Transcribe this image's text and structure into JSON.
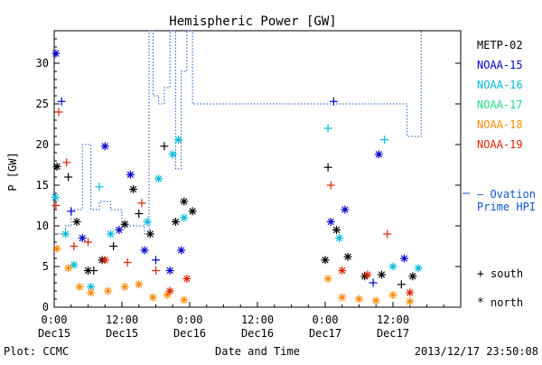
{
  "chart_data": {
    "type": "scatter",
    "title": "Hemispheric Power [GW]",
    "xlabel": "Date and Time",
    "ylabel": "P [GW]",
    "ylim": [
      0,
      34
    ],
    "xlim_hours": [
      0,
      72
    ],
    "x_ticks": [
      {
        "t": 0,
        "top": "0:00",
        "bottom": "Dec15"
      },
      {
        "t": 12,
        "top": "12:00",
        "bottom": "Dec15"
      },
      {
        "t": 24,
        "top": "0:00",
        "bottom": "Dec16"
      },
      {
        "t": 36,
        "top": "12:00",
        "bottom": "Dec16"
      },
      {
        "t": 48,
        "top": "0:00",
        "bottom": "Dec17"
      },
      {
        "t": 60,
        "top": "12:00",
        "bottom": "Dec17"
      }
    ],
    "y_ticks": [
      0,
      5,
      10,
      15,
      20,
      25,
      30
    ],
    "footer_left": "Plot: CCMC",
    "footer_right": "2013/12/17 23:50:08",
    "ovation_label_line1": "— Ovation",
    "ovation_label_line2": "Prime HPI",
    "symbol_legend": [
      {
        "symbol": "+",
        "label": "south"
      },
      {
        "symbol": "*",
        "label": "north"
      }
    ],
    "series": [
      {
        "name": "METP-02",
        "color": "#000000",
        "points": [
          {
            "x": 0.5,
            "y": 17.3,
            "m": "*"
          },
          {
            "x": 2.5,
            "y": 16.0,
            "m": "+"
          },
          {
            "x": 4.0,
            "y": 10.5,
            "m": "*"
          },
          {
            "x": 6.0,
            "y": 4.5,
            "m": "*"
          },
          {
            "x": 7.0,
            "y": 4.5,
            "m": "+"
          },
          {
            "x": 8.5,
            "y": 5.8,
            "m": "*"
          },
          {
            "x": 10.5,
            "y": 7.5,
            "m": "+"
          },
          {
            "x": 12.5,
            "y": 10.2,
            "m": "*"
          },
          {
            "x": 14.0,
            "y": 14.5,
            "m": "*"
          },
          {
            "x": 15.0,
            "y": 11.5,
            "m": "+"
          },
          {
            "x": 17.0,
            "y": 9.0,
            "m": "*"
          },
          {
            "x": 19.5,
            "y": 19.8,
            "m": "+"
          },
          {
            "x": 21.5,
            "y": 10.5,
            "m": "*"
          },
          {
            "x": 23.0,
            "y": 13.0,
            "m": "*"
          },
          {
            "x": 24.5,
            "y": 11.8,
            "m": "*"
          },
          {
            "x": 48.5,
            "y": 17.2,
            "m": "+"
          },
          {
            "x": 48.0,
            "y": 5.8,
            "m": "*"
          },
          {
            "x": 50.0,
            "y": 9.5,
            "m": "*"
          },
          {
            "x": 52.0,
            "y": 6.2,
            "m": "*"
          },
          {
            "x": 55.0,
            "y": 3.8,
            "m": "*"
          },
          {
            "x": 58.0,
            "y": 4.0,
            "m": "*"
          },
          {
            "x": 61.5,
            "y": 2.8,
            "m": "+"
          },
          {
            "x": 63.5,
            "y": 3.8,
            "m": "*"
          }
        ]
      },
      {
        "name": "NOAA-15",
        "color": "#0000cc",
        "points": [
          {
            "x": 0.3,
            "y": 31.2,
            "m": "*"
          },
          {
            "x": 1.3,
            "y": 25.3,
            "m": "+"
          },
          {
            "x": 3.0,
            "y": 11.8,
            "m": "+"
          },
          {
            "x": 5.0,
            "y": 8.5,
            "m": "*"
          },
          {
            "x": 9.0,
            "y": 19.8,
            "m": "*"
          },
          {
            "x": 11.5,
            "y": 9.5,
            "m": "*"
          },
          {
            "x": 13.5,
            "y": 16.3,
            "m": "*"
          },
          {
            "x": 16.0,
            "y": 7.0,
            "m": "*"
          },
          {
            "x": 18.0,
            "y": 5.8,
            "m": "+"
          },
          {
            "x": 20.5,
            "y": 4.5,
            "m": "*"
          },
          {
            "x": 22.5,
            "y": 7.0,
            "m": "*"
          },
          {
            "x": 49.5,
            "y": 25.3,
            "m": "+"
          },
          {
            "x": 49.0,
            "y": 10.5,
            "m": "*"
          },
          {
            "x": 51.5,
            "y": 12.0,
            "m": "*"
          },
          {
            "x": 57.5,
            "y": 18.8,
            "m": "*"
          },
          {
            "x": 56.5,
            "y": 3.0,
            "m": "+"
          },
          {
            "x": 62.0,
            "y": 6.0,
            "m": "*"
          }
        ]
      },
      {
        "name": "NOAA-16",
        "color": "#00bbdd",
        "points": [
          {
            "x": 0.2,
            "y": 13.5,
            "m": "*"
          },
          {
            "x": 2.0,
            "y": 9.0,
            "m": "*"
          },
          {
            "x": 3.5,
            "y": 5.2,
            "m": "*"
          },
          {
            "x": 6.5,
            "y": 2.5,
            "m": "*"
          },
          {
            "x": 8.0,
            "y": 14.8,
            "m": "+"
          },
          {
            "x": 10.0,
            "y": 9.0,
            "m": "*"
          },
          {
            "x": 16.5,
            "y": 10.5,
            "m": "*"
          },
          {
            "x": 18.5,
            "y": 15.8,
            "m": "*"
          },
          {
            "x": 21.0,
            "y": 18.8,
            "m": "*"
          },
          {
            "x": 22.0,
            "y": 20.6,
            "m": "*"
          },
          {
            "x": 23.0,
            "y": 11.0,
            "m": "*"
          },
          {
            "x": 48.5,
            "y": 22.0,
            "m": "+"
          },
          {
            "x": 50.5,
            "y": 8.5,
            "m": "*"
          },
          {
            "x": 58.5,
            "y": 20.6,
            "m": "+"
          },
          {
            "x": 60.0,
            "y": 5.0,
            "m": "*"
          },
          {
            "x": 64.5,
            "y": 4.8,
            "m": "*"
          }
        ]
      },
      {
        "name": "NOAA-17",
        "color": "#22dd88",
        "points": []
      },
      {
        "name": "NOAA-18",
        "color": "#ff8800",
        "points": [
          {
            "x": 0.5,
            "y": 7.2,
            "m": "*"
          },
          {
            "x": 2.5,
            "y": 4.8,
            "m": "*"
          },
          {
            "x": 4.5,
            "y": 2.5,
            "m": "*"
          },
          {
            "x": 6.5,
            "y": 1.8,
            "m": "*"
          },
          {
            "x": 9.5,
            "y": 2.0,
            "m": "*"
          },
          {
            "x": 12.5,
            "y": 2.5,
            "m": "*"
          },
          {
            "x": 15.0,
            "y": 2.8,
            "m": "*"
          },
          {
            "x": 17.5,
            "y": 1.2,
            "m": "*"
          },
          {
            "x": 20.0,
            "y": 1.5,
            "m": "*"
          },
          {
            "x": 23.0,
            "y": 0.9,
            "m": "*"
          },
          {
            "x": 48.5,
            "y": 3.5,
            "m": "*"
          },
          {
            "x": 51.0,
            "y": 1.2,
            "m": "*"
          },
          {
            "x": 54.0,
            "y": 1.0,
            "m": "*"
          },
          {
            "x": 57.0,
            "y": 0.8,
            "m": "*"
          },
          {
            "x": 60.0,
            "y": 1.5,
            "m": "*"
          },
          {
            "x": 63.0,
            "y": 0.7,
            "m": "*"
          }
        ]
      },
      {
        "name": "NOAA-19",
        "color": "#dd2200",
        "points": [
          {
            "x": 0.8,
            "y": 24.0,
            "m": "+"
          },
          {
            "x": 2.2,
            "y": 17.8,
            "m": "+"
          },
          {
            "x": 0.3,
            "y": 12.5,
            "m": "+"
          },
          {
            "x": 3.5,
            "y": 7.5,
            "m": "+"
          },
          {
            "x": 6.0,
            "y": 8.0,
            "m": "+"
          },
          {
            "x": 9.0,
            "y": 5.8,
            "m": "*"
          },
          {
            "x": 13.0,
            "y": 5.5,
            "m": "+"
          },
          {
            "x": 15.5,
            "y": 12.8,
            "m": "+"
          },
          {
            "x": 18.0,
            "y": 4.5,
            "m": "+"
          },
          {
            "x": 20.5,
            "y": 2.0,
            "m": "*"
          },
          {
            "x": 23.5,
            "y": 3.5,
            "m": "*"
          },
          {
            "x": 49.0,
            "y": 15.0,
            "m": "+"
          },
          {
            "x": 51.0,
            "y": 4.5,
            "m": "*"
          },
          {
            "x": 55.5,
            "y": 4.0,
            "m": "*"
          },
          {
            "x": 59.0,
            "y": 9.0,
            "m": "+"
          },
          {
            "x": 63.0,
            "y": 1.8,
            "m": "*"
          }
        ]
      }
    ],
    "ovation_hpi": [
      [
        0,
        9
      ],
      [
        2,
        10
      ],
      [
        3,
        12
      ],
      [
        5,
        20
      ],
      [
        6.5,
        12
      ],
      [
        8,
        13
      ],
      [
        10,
        12
      ],
      [
        12,
        10
      ],
      [
        16,
        9
      ],
      [
        16.8,
        34
      ],
      [
        17.5,
        26
      ],
      [
        18.5,
        25
      ],
      [
        19.5,
        27
      ],
      [
        20.5,
        34
      ],
      [
        21.5,
        17
      ],
      [
        22.5,
        29
      ],
      [
        23.5,
        35
      ],
      [
        24.5,
        25
      ],
      [
        25.5,
        25
      ],
      [
        28.5,
        25
      ],
      [
        62.5,
        21
      ],
      [
        64,
        21
      ],
      [
        65,
        35
      ]
    ]
  }
}
